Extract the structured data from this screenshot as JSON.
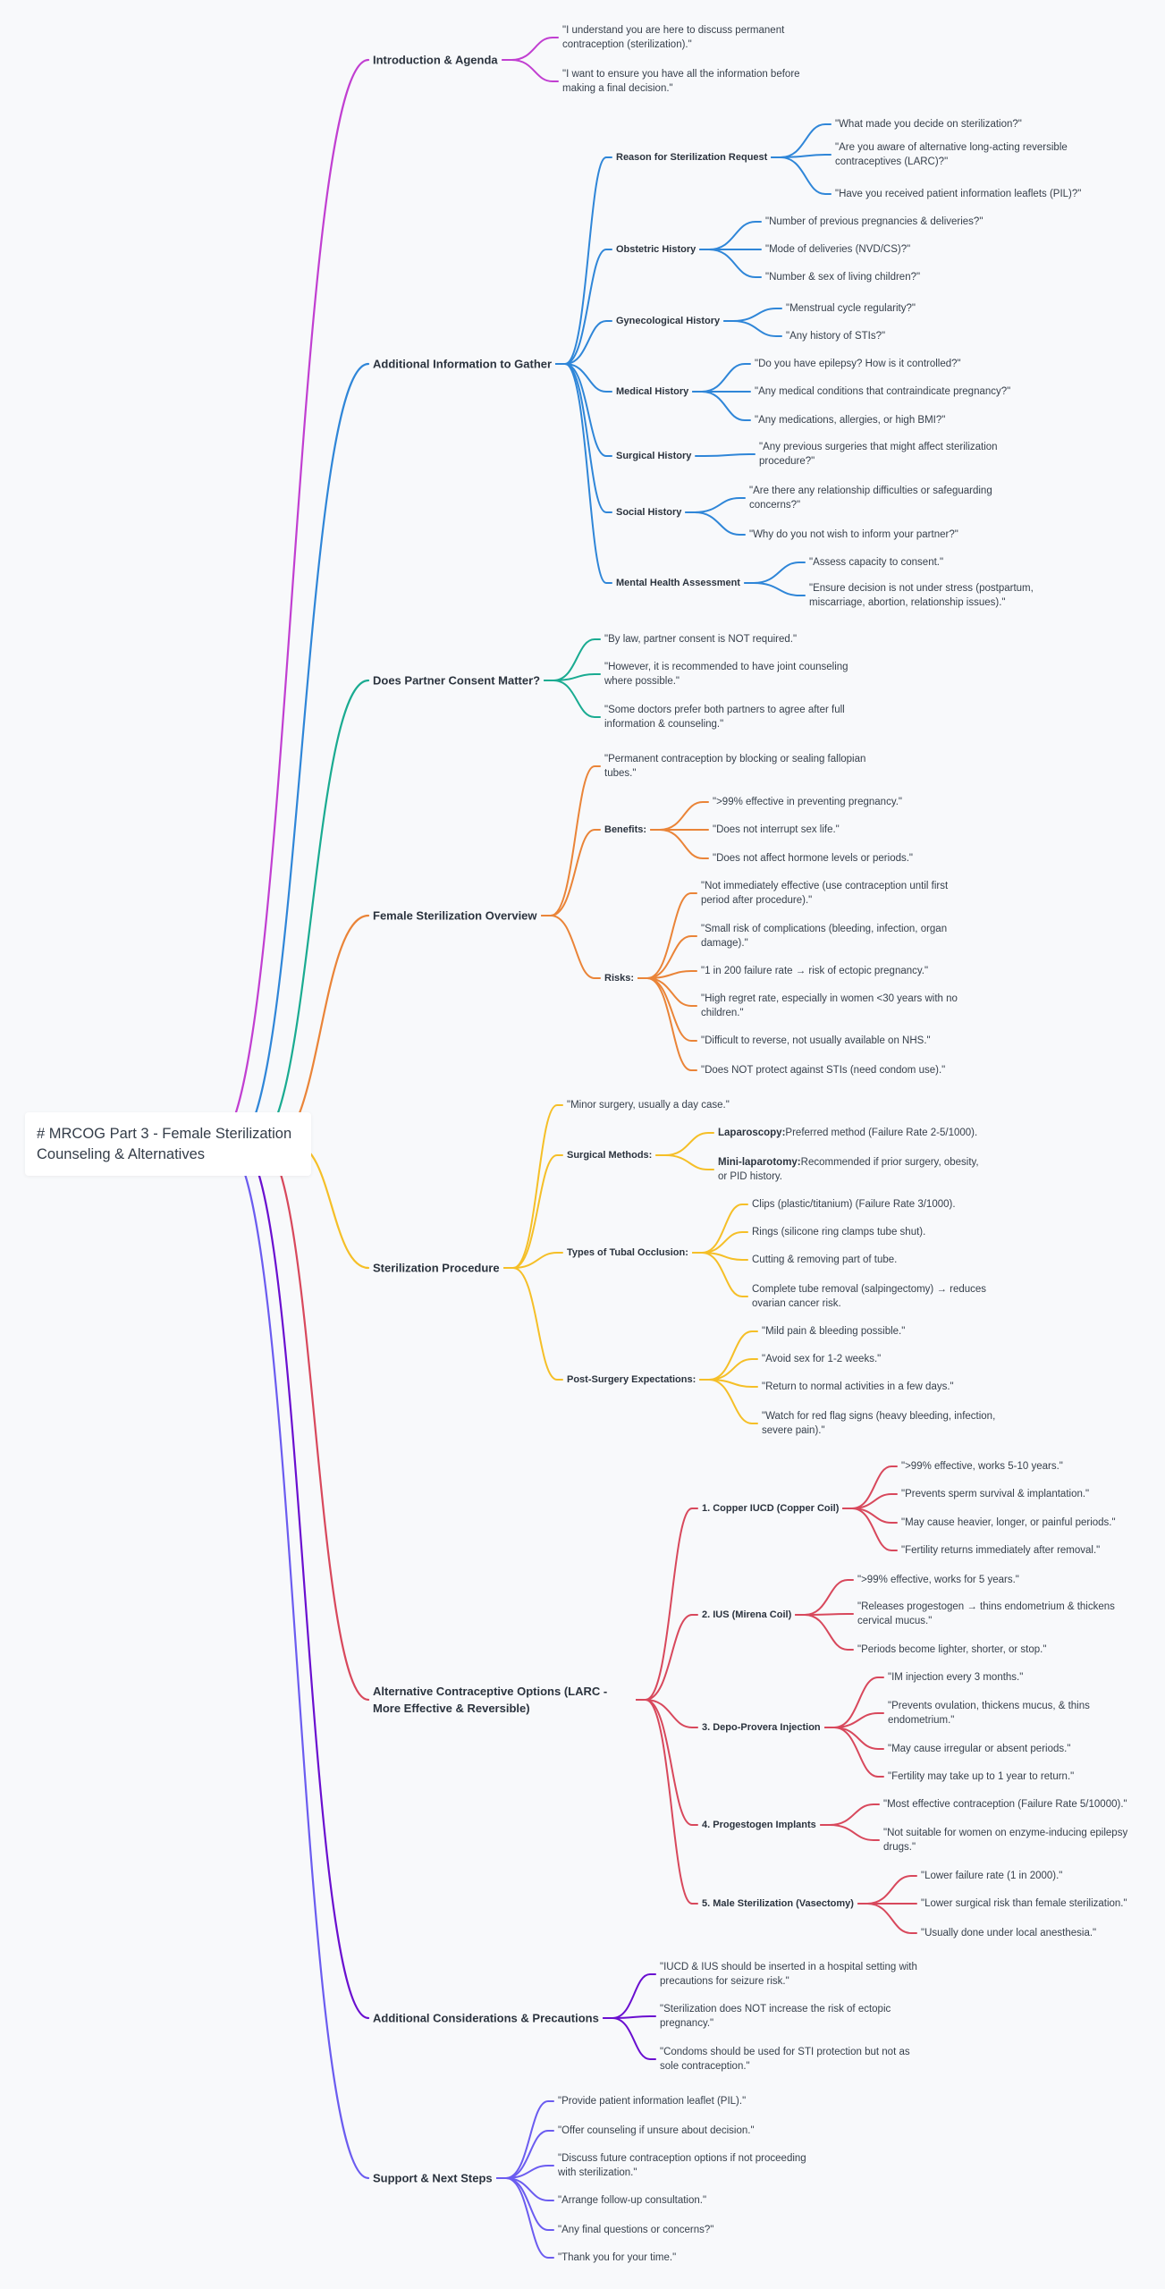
{
  "root": {
    "label": "# MRCOG Part 3 - Female Sterilization Counseling & Alternatives"
  },
  "colors": [
    "#c13fd1",
    "#2f86d8",
    "#1aab91",
    "#ea8438",
    "#f5bf27",
    "#d8485c",
    "#6a0fd0",
    "#6b5cf0"
  ],
  "tree": [
    {
      "label": "Introduction & Agenda",
      "children": [
        {
          "label": "\"I understand you are here to discuss permanent contraception (sterilization).\""
        },
        {
          "label": "\"I want to ensure you have all the information before making a final decision.\""
        }
      ]
    },
    {
      "label": "Additional Information to Gather",
      "children": [
        {
          "label": "Reason for Sterilization Request",
          "children": [
            {
              "label": "\"What made you decide on sterilization?\""
            },
            {
              "label": "\"Are you aware of alternative long-acting reversible contraceptives (LARC)?\""
            },
            {
              "label": "\"Have you received patient information leaflets (PIL)?\""
            }
          ]
        },
        {
          "label": "Obstetric History",
          "children": [
            {
              "label": "\"Number of previous pregnancies & deliveries?\""
            },
            {
              "label": "\"Mode of deliveries (NVD/CS)?\""
            },
            {
              "label": "\"Number & sex of living children?\""
            }
          ]
        },
        {
          "label": "Gynecological History",
          "children": [
            {
              "label": "\"Menstrual cycle regularity?\""
            },
            {
              "label": "\"Any history of STIs?\""
            }
          ]
        },
        {
          "label": "Medical History",
          "children": [
            {
              "label": "\"Do you have epilepsy? How is it controlled?\""
            },
            {
              "label": "\"Any medical conditions that contraindicate pregnancy?\""
            },
            {
              "label": "\"Any medications, allergies, or high BMI?\""
            }
          ]
        },
        {
          "label": "Surgical History",
          "children": [
            {
              "label": "\"Any previous surgeries that might affect sterilization procedure?\""
            }
          ]
        },
        {
          "label": "Social History",
          "children": [
            {
              "label": "\"Are there any relationship difficulties or safeguarding concerns?\""
            },
            {
              "label": "\"Why do you not wish to inform your partner?\""
            }
          ]
        },
        {
          "label": "Mental Health Assessment",
          "children": [
            {
              "label": "\"Assess capacity to consent.\""
            },
            {
              "label": "\"Ensure decision is not under stress (postpartum, miscarriage, abortion, relationship issues).\""
            }
          ]
        }
      ]
    },
    {
      "label": "Does Partner Consent Matter?",
      "children": [
        {
          "label": "\"By law, partner consent is NOT required.\""
        },
        {
          "label": "\"However, it is recommended to have joint counseling where possible.\""
        },
        {
          "label": "\"Some doctors prefer both partners to agree after full information & counseling.\""
        }
      ]
    },
    {
      "label": "Female Sterilization Overview",
      "children": [
        {
          "label": "\"Permanent contraception by blocking or sealing fallopian tubes.\""
        },
        {
          "label": "Benefits:",
          "children": [
            {
              "label": "\">99% effective in preventing pregnancy.\""
            },
            {
              "label": "\"Does not interrupt sex life.\""
            },
            {
              "label": "\"Does not affect hormone levels or periods.\""
            }
          ]
        },
        {
          "label": "Risks:",
          "children": [
            {
              "label": "\"Not immediately effective (use contraception until first period after procedure).\""
            },
            {
              "label": "\"Small risk of complications (bleeding, infection, organ damage).\""
            },
            {
              "label": "\"1 in 200 failure rate → risk of ectopic pregnancy.\""
            },
            {
              "label": "\"High regret rate, especially in women <30 years with no children.\""
            },
            {
              "label": "\"Difficult to reverse, not usually available on NHS.\""
            },
            {
              "label": "\"Does NOT protect against STIs (need condom use).\""
            }
          ]
        }
      ]
    },
    {
      "label": "Sterilization Procedure",
      "children": [
        {
          "label": "\"Minor surgery, usually a day case.\""
        },
        {
          "label": "Surgical Methods:",
          "children": [
            {
              "bold": "Laparoscopy:",
              "label": "Preferred method (Failure Rate 2-5/1000)."
            },
            {
              "bold": "Mini-laparotomy:",
              "label": "Recommended if prior surgery, obesity, or PID history."
            }
          ]
        },
        {
          "label": "Types of Tubal Occlusion:",
          "children": [
            {
              "label": "Clips (plastic/titanium) (Failure Rate 3/1000)."
            },
            {
              "label": "Rings (silicone ring clamps tube shut)."
            },
            {
              "label": "Cutting & removing part of tube."
            },
            {
              "label": "Complete tube removal (salpingectomy) → reduces ovarian cancer risk."
            }
          ]
        },
        {
          "label": "Post-Surgery Expectations:",
          "children": [
            {
              "label": "\"Mild pain & bleeding possible.\""
            },
            {
              "label": "\"Avoid sex for 1-2 weeks.\""
            },
            {
              "label": "\"Return to normal activities in a few days.\""
            },
            {
              "label": "\"Watch for red flag signs (heavy bleeding, infection, severe pain).\""
            }
          ]
        }
      ]
    },
    {
      "label": "Alternative Contraceptive Options (LARC - More Effective & Reversible)",
      "children": [
        {
          "label": "1. Copper IUCD (Copper Coil)",
          "children": [
            {
              "label": "\">99% effective, works 5-10 years.\""
            },
            {
              "label": "\"Prevents sperm survival & implantation.\""
            },
            {
              "label": "\"May cause heavier, longer, or painful periods.\""
            },
            {
              "label": "\"Fertility returns immediately after removal.\""
            }
          ]
        },
        {
          "label": "2. IUS (Mirena Coil)",
          "children": [
            {
              "label": "\">99% effective, works for 5 years.\""
            },
            {
              "label": "\"Releases progestogen → thins endometrium & thickens cervical mucus.\""
            },
            {
              "label": "\"Periods become lighter, shorter, or stop.\""
            }
          ]
        },
        {
          "label": "3. Depo-Provera Injection",
          "children": [
            {
              "label": "\"IM injection every 3 months.\""
            },
            {
              "label": "\"Prevents ovulation, thickens mucus, & thins endometrium.\""
            },
            {
              "label": "\"May cause irregular or absent periods.\""
            },
            {
              "label": "\"Fertility may take up to 1 year to return.\""
            }
          ]
        },
        {
          "label": "4. Progestogen Implants",
          "children": [
            {
              "label": "\"Most effective contraception (Failure Rate 5/10000).\""
            },
            {
              "label": "\"Not suitable for women on enzyme-inducing epilepsy drugs.\""
            }
          ]
        },
        {
          "label": "5. Male Sterilization (Vasectomy)",
          "children": [
            {
              "label": "\"Lower failure rate (1 in 2000).\""
            },
            {
              "label": "\"Lower surgical risk than female sterilization.\""
            },
            {
              "label": "\"Usually done under local anesthesia.\""
            }
          ]
        }
      ]
    },
    {
      "label": "Additional Considerations & Precautions",
      "children": [
        {
          "label": "\"IUCD & IUS should be inserted in a hospital setting with precautions for seizure risk.\""
        },
        {
          "label": "\"Sterilization does NOT increase the risk of ectopic pregnancy.\""
        },
        {
          "label": "\"Condoms should be used for STI protection but not as sole contraception.\""
        }
      ]
    },
    {
      "label": "Support & Next Steps",
      "children": [
        {
          "label": "\"Provide patient information leaflet (PIL).\""
        },
        {
          "label": "\"Offer counseling if unsure about decision.\""
        },
        {
          "label": "\"Discuss future contraception options if not proceeding with sterilization.\""
        },
        {
          "label": "\"Arrange follow-up consultation.\""
        },
        {
          "label": "\"Any final questions or concerns?\""
        },
        {
          "label": "\"Thank you for your time.\""
        }
      ]
    }
  ]
}
